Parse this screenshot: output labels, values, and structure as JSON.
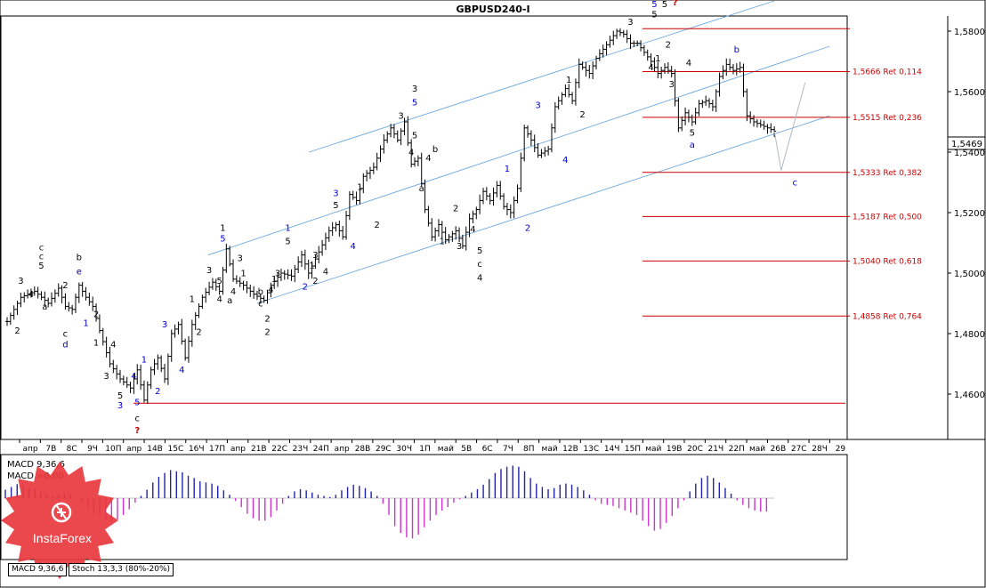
{
  "title": "GBPUSD240-I",
  "last_price": "1,5469",
  "chart_data": [
    {
      "type": "candlestick",
      "title": "GBPUSD240-I",
      "ylim": [
        1.445,
        1.585
      ],
      "yticks": [
        "1,4600",
        "1,4800",
        "1,5000",
        "1,5200",
        "1,5400",
        "1,5600",
        "1,5800"
      ],
      "ytick_values": [
        1.46,
        1.48,
        1.5,
        1.52,
        1.54,
        1.56,
        1.58
      ],
      "xticks": [
        "апр",
        "7В",
        "8С",
        "9Ч",
        "10П",
        "апр",
        "14В",
        "15С",
        "16Ч",
        "17П",
        "апр",
        "21В",
        "22С",
        "23Ч",
        "24П",
        "апр",
        "28В",
        "29С",
        "30Ч",
        "1П",
        "май",
        "5В",
        "6С",
        "7Ч",
        "8П",
        "май",
        "12В",
        "13С",
        "14Ч",
        "15П",
        "май",
        "19В",
        "20С",
        "21Ч",
        "22П",
        "май",
        "26В",
        "27С",
        "28Ч",
        "29"
      ],
      "price_path": [
        [
          0,
          1.484
        ],
        [
          4,
          1.492
        ],
        [
          8,
          1.494
        ],
        [
          12,
          1.49
        ],
        [
          15,
          1.495
        ],
        [
          17,
          1.489
        ],
        [
          19,
          1.488
        ],
        [
          21,
          1.496
        ],
        [
          23,
          1.492
        ],
        [
          25,
          1.489
        ],
        [
          27,
          1.481
        ],
        [
          30,
          1.47
        ],
        [
          33,
          1.465
        ],
        [
          36,
          1.462
        ],
        [
          38,
          1.468
        ],
        [
          40,
          1.458
        ],
        [
          42,
          1.468
        ],
        [
          44,
          1.472
        ],
        [
          46,
          1.465
        ],
        [
          48,
          1.48
        ],
        [
          50,
          1.483
        ],
        [
          52,
          1.472
        ],
        [
          54,
          1.483
        ],
        [
          57,
          1.492
        ],
        [
          60,
          1.497
        ],
        [
          62,
          1.494
        ],
        [
          64,
          1.508
        ],
        [
          66,
          1.498
        ],
        [
          69,
          1.496
        ],
        [
          72,
          1.493
        ],
        [
          75,
          1.491
        ],
        [
          77,
          1.496
        ],
        [
          80,
          1.5
        ],
        [
          83,
          1.499
        ],
        [
          86,
          1.506
        ],
        [
          88,
          1.5
        ],
        [
          91,
          1.507
        ],
        [
          94,
          1.514
        ],
        [
          96,
          1.516
        ],
        [
          98,
          1.512
        ],
        [
          100,
          1.526
        ],
        [
          102,
          1.524
        ],
        [
          104,
          1.532
        ],
        [
          107,
          1.535
        ],
        [
          110,
          1.544
        ],
        [
          112,
          1.548
        ],
        [
          114,
          1.544
        ],
        [
          116,
          1.55
        ],
        [
          118,
          1.536
        ],
        [
          120,
          1.538
        ],
        [
          122,
          1.521
        ],
        [
          124,
          1.512
        ],
        [
          126,
          1.516
        ],
        [
          128,
          1.511
        ],
        [
          131,
          1.514
        ],
        [
          133,
          1.509
        ],
        [
          135,
          1.518
        ],
        [
          137,
          1.521
        ],
        [
          139,
          1.527
        ],
        [
          141,
          1.524
        ],
        [
          143,
          1.529
        ],
        [
          145,
          1.522
        ],
        [
          147,
          1.52
        ],
        [
          149,
          1.528
        ],
        [
          151,
          1.548
        ],
        [
          153,
          1.544
        ],
        [
          155,
          1.539
        ],
        [
          158,
          1.541
        ],
        [
          160,
          1.555
        ],
        [
          163,
          1.561
        ],
        [
          165,
          1.557
        ],
        [
          167,
          1.569
        ],
        [
          170,
          1.566
        ],
        [
          172,
          1.571
        ],
        [
          174,
          1.574
        ],
        [
          176,
          1.577
        ],
        [
          178,
          1.58
        ],
        [
          180,
          1.579
        ],
        [
          182,
          1.576
        ],
        [
          184,
          1.576
        ],
        [
          186,
          1.573
        ],
        [
          188,
          1.57
        ],
        [
          190,
          1.566
        ],
        [
          192,
          1.568
        ],
        [
          194,
          1.566
        ],
        [
          196,
          1.548
        ],
        [
          198,
          1.553
        ],
        [
          200,
          1.55
        ],
        [
          202,
          1.556
        ],
        [
          204,
          1.557
        ],
        [
          206,
          1.555
        ],
        [
          208,
          1.565
        ],
        [
          210,
          1.569
        ],
        [
          212,
          1.567
        ],
        [
          214,
          1.568
        ],
        [
          216,
          1.552
        ],
        [
          218,
          1.55
        ],
        [
          220,
          1.549
        ],
        [
          222,
          1.548
        ],
        [
          224,
          1.5469
        ]
      ],
      "projection": [
        [
          224,
          1.5469
        ],
        [
          226,
          1.534
        ],
        [
          233,
          1.563
        ]
      ],
      "retracement_levels": [
        {
          "label": "1,5666 Ret 0,114",
          "value": 1.5666
        },
        {
          "label": "1,5515 Ret 0,236",
          "value": 1.5515
        },
        {
          "label": "1,5333 Ret 0,382",
          "value": 1.5333
        },
        {
          "label": "1,5187 Ret 0,500",
          "value": 1.5187
        },
        {
          "label": "1,5040 Ret 0,618",
          "value": 1.504
        },
        {
          "label": "1,4858 Ret 0,764",
          "value": 1.4858
        }
      ],
      "channels": [
        [
          [
            88,
            1.54
          ],
          [
            222,
            1.59
          ]
        ],
        [
          [
            59,
            1.506
          ],
          [
            238,
            1.575
          ]
        ],
        [
          [
            73,
            1.49
          ],
          [
            238,
            1.552
          ]
        ]
      ],
      "wave_labels": [
        {
          "t": "2",
          "x": 3,
          "y": 1.48,
          "c": "#000000"
        },
        {
          "t": "3",
          "x": 4,
          "y": 1.4965,
          "c": "#000000"
        },
        {
          "t": "c",
          "x": 10,
          "y": 1.5075,
          "c": "#1a1a1a"
        },
        {
          "t": "c",
          "x": 10,
          "y": 1.5045,
          "c": "#1a1a1a"
        },
        {
          "t": "5",
          "x": 10,
          "y": 1.5015,
          "c": "#000000"
        },
        {
          "t": "4",
          "x": 7,
          "y": 1.492,
          "c": "#000000"
        },
        {
          "t": "a",
          "x": 11,
          "y": 1.488,
          "c": "#000000"
        },
        {
          "t": "2",
          "x": 17,
          "y": 1.495,
          "c": "#000000"
        },
        {
          "t": "b",
          "x": 21,
          "y": 1.5042,
          "c": "#000000"
        },
        {
          "t": "e",
          "x": 21,
          "y": 1.4995,
          "c": "#00008b"
        },
        {
          "t": "c",
          "x": 17,
          "y": 1.479,
          "c": "#000000"
        },
        {
          "t": "d",
          "x": 17,
          "y": 1.4755,
          "c": "#00008b"
        },
        {
          "t": "1",
          "x": 23,
          "y": 1.4825,
          "c": "#0000cd"
        },
        {
          "t": "2",
          "x": 26,
          "y": 1.4855,
          "c": "#000000"
        },
        {
          "t": "1",
          "x": 26,
          "y": 1.476,
          "c": "#000000"
        },
        {
          "t": "3",
          "x": 29,
          "y": 1.465,
          "c": "#000000"
        },
        {
          "t": "4",
          "x": 31,
          "y": 1.4755,
          "c": "#000000"
        },
        {
          "t": "4",
          "x": 37,
          "y": 1.465,
          "c": "#0000cd"
        },
        {
          "t": "5",
          "x": 33,
          "y": 1.4585,
          "c": "#000000"
        },
        {
          "t": "3",
          "x": 33,
          "y": 1.4553,
          "c": "#0000cd"
        },
        {
          "t": "5",
          "x": 38,
          "y": 1.4563,
          "c": "#0000cd"
        },
        {
          "t": "1",
          "x": 40,
          "y": 1.4705,
          "c": "#0000cd"
        },
        {
          "t": "c",
          "x": 38,
          "y": 1.451,
          "c": "#000000"
        },
        {
          "t": "?",
          "x": 38,
          "y": 1.447,
          "c": "#cc0000"
        },
        {
          "t": "2",
          "x": 44,
          "y": 1.46,
          "c": "#0000cd"
        },
        {
          "t": "3",
          "x": 46,
          "y": 1.482,
          "c": "#0000cd"
        },
        {
          "t": "4",
          "x": 51,
          "y": 1.467,
          "c": "#0000cd"
        },
        {
          "t": "2",
          "x": 56,
          "y": 1.4795,
          "c": "#000000"
        },
        {
          "t": "1",
          "x": 54,
          "y": 1.4905,
          "c": "#000000"
        },
        {
          "t": "3",
          "x": 59,
          "y": 1.5,
          "c": "#000000"
        },
        {
          "t": "4",
          "x": 62,
          "y": 1.4905,
          "c": "#000000"
        },
        {
          "t": "a",
          "x": 65,
          "y": 1.49,
          "c": "#000000"
        },
        {
          "t": "5",
          "x": 62,
          "y": 1.4965,
          "c": "#000000"
        },
        {
          "t": "1",
          "x": 63,
          "y": 1.514,
          "c": "#000000"
        },
        {
          "t": "5",
          "x": 63,
          "y": 1.5105,
          "c": "#0000cd"
        },
        {
          "t": "4",
          "x": 66,
          "y": 1.493,
          "c": "#000000"
        },
        {
          "t": "1",
          "x": 69,
          "y": 1.499,
          "c": "#000000"
        },
        {
          "t": "3",
          "x": 68,
          "y": 1.504,
          "c": "#000000"
        },
        {
          "t": "b",
          "x": 74,
          "y": 1.493,
          "c": "#000000"
        },
        {
          "t": "c",
          "x": 74,
          "y": 1.489,
          "c": "#000000"
        },
        {
          "t": "2",
          "x": 76,
          "y": 1.484,
          "c": "#000000"
        },
        {
          "t": "1",
          "x": 78,
          "y": 1.497,
          "c": "#000000"
        },
        {
          "t": "2",
          "x": 76,
          "y": 1.4795,
          "c": "#000000"
        },
        {
          "t": "4",
          "x": 77,
          "y": 1.4935,
          "c": "#000000"
        },
        {
          "t": "3",
          "x": 79,
          "y": 1.499,
          "c": "#000000"
        },
        {
          "t": "5",
          "x": 82,
          "y": 1.5095,
          "c": "#000000"
        },
        {
          "t": "1",
          "x": 82,
          "y": 1.514,
          "c": "#0000cd"
        },
        {
          "t": "2",
          "x": 87,
          "y": 1.4945,
          "c": "#0000cd"
        },
        {
          "t": "1",
          "x": 89,
          "y": 1.5015,
          "c": "#000000"
        },
        {
          "t": "3",
          "x": 90,
          "y": 1.505,
          "c": "#000000"
        },
        {
          "t": "2",
          "x": 90,
          "y": 1.4965,
          "c": "#000000"
        },
        {
          "t": "4",
          "x": 93,
          "y": 1.4995,
          "c": "#000000"
        },
        {
          "t": "5",
          "x": 96,
          "y": 1.5215,
          "c": "#000000"
        },
        {
          "t": "3",
          "x": 96,
          "y": 1.5255,
          "c": "#0000cd"
        },
        {
          "t": "4",
          "x": 101,
          "y": 1.508,
          "c": "#0000cd"
        },
        {
          "t": "1",
          "x": 103,
          "y": 1.5275,
          "c": "#000000"
        },
        {
          "t": "2",
          "x": 108,
          "y": 1.515,
          "c": "#000000"
        },
        {
          "t": "3",
          "x": 115,
          "y": 1.551,
          "c": "#000000"
        },
        {
          "t": "5",
          "x": 119,
          "y": 1.5445,
          "c": "#000000"
        },
        {
          "t": "4",
          "x": 118,
          "y": 1.539,
          "c": "#000000"
        },
        {
          "t": "3",
          "x": 119,
          "y": 1.56,
          "c": "#000000"
        },
        {
          "t": "5",
          "x": 119,
          "y": 1.5555,
          "c": "#0000cd"
        },
        {
          "t": "4",
          "x": 123,
          "y": 1.537,
          "c": "#000000"
        },
        {
          "t": "a",
          "x": 121,
          "y": 1.527,
          "c": "#000000"
        },
        {
          "t": "b",
          "x": 125,
          "y": 1.54,
          "c": "#000000"
        },
        {
          "t": "1",
          "x": 127,
          "y": 1.5095,
          "c": "#000000"
        },
        {
          "t": "2",
          "x": 131,
          "y": 1.5205,
          "c": "#000000"
        },
        {
          "t": "3",
          "x": 132,
          "y": 1.508,
          "c": "#000000"
        },
        {
          "t": "4",
          "x": 136,
          "y": 1.5135,
          "c": "#000000"
        },
        {
          "t": "5",
          "x": 138,
          "y": 1.5065,
          "c": "#000000"
        },
        {
          "t": "c",
          "x": 138,
          "y": 1.502,
          "c": "#000000"
        },
        {
          "t": "4",
          "x": 138,
          "y": 1.4975,
          "c": "#000000"
        },
        {
          "t": "1",
          "x": 146,
          "y": 1.5335,
          "c": "#0000cd"
        },
        {
          "t": "2",
          "x": 152,
          "y": 1.514,
          "c": "#0000cd"
        },
        {
          "t": "3",
          "x": 155,
          "y": 1.5545,
          "c": "#0000cd"
        },
        {
          "t": "4",
          "x": 163,
          "y": 1.5365,
          "c": "#0000cd"
        },
        {
          "t": "1",
          "x": 164,
          "y": 1.563,
          "c": "#000000"
        },
        {
          "t": "2",
          "x": 168,
          "y": 1.5515,
          "c": "#000000"
        },
        {
          "t": "3",
          "x": 182,
          "y": 1.582,
          "c": "#000000"
        },
        {
          "t": "5",
          "x": 189,
          "y": 1.588,
          "c": "#0000cd"
        },
        {
          "t": "5",
          "x": 189,
          "y": 1.5845,
          "c": "#000000"
        },
        {
          "t": "5",
          "x": 192,
          "y": 1.588,
          "c": "#000000"
        },
        {
          "t": "?",
          "x": 195,
          "y": 1.5885,
          "c": "#cc0000"
        },
        {
          "t": "2",
          "x": 193,
          "y": 1.5745,
          "c": "#000000"
        },
        {
          "t": "1",
          "x": 190,
          "y": 1.57,
          "c": "#000000"
        },
        {
          "t": "4",
          "x": 188,
          "y": 1.567,
          "c": "#000000"
        },
        {
          "t": "3",
          "x": 194,
          "y": 1.5615,
          "c": "#000000"
        },
        {
          "t": "4",
          "x": 199,
          "y": 1.5685,
          "c": "#000000"
        },
        {
          "t": "5",
          "x": 200,
          "y": 1.5455,
          "c": "#000000"
        },
        {
          "t": "a",
          "x": 200,
          "y": 1.5415,
          "c": "#0000cd"
        },
        {
          "t": "b",
          "x": 213,
          "y": 1.573,
          "c": "#0000cd"
        },
        {
          "t": "c",
          "x": 230,
          "y": 1.529,
          "c": "#0000cd"
        }
      ]
    },
    {
      "type": "histogram",
      "title": "MACD 9,36,6",
      "labels": [
        "MACD 9,36,6",
        "MACD =0,00"
      ],
      "zero_line": 0,
      "values": [
        0.0015,
        0.002,
        0.0025,
        0.0022,
        0.0018,
        0.0015,
        0.001,
        0.0006,
        0.0004,
        0.0007,
        0.0009,
        0.0006,
        0.0,
        -0.0008,
        -0.0018,
        -0.0028,
        -0.0035,
        -0.004,
        -0.0042,
        -0.0038,
        -0.003,
        -0.002,
        -0.0008,
        0.0004,
        0.0015,
        0.0028,
        0.0038,
        0.0045,
        0.005,
        0.0048,
        0.0046,
        0.004,
        0.0036,
        0.003,
        0.0028,
        0.0026,
        0.0022,
        0.0014,
        0.0006,
        -0.0005,
        -0.0016,
        -0.0028,
        -0.0036,
        -0.004,
        -0.004,
        -0.0034,
        -0.0022,
        -0.001,
        0.0004,
        0.0012,
        0.0016,
        0.0014,
        0.001,
        0.0006,
        0.0004,
        0.0002,
        0.0006,
        0.0014,
        0.002,
        0.0024,
        0.0022,
        0.0018,
        0.0012,
        0.0004,
        -0.001,
        -0.003,
        -0.005,
        -0.0062,
        -0.007,
        -0.0072,
        -0.0065,
        -0.0052,
        -0.004,
        -0.003,
        -0.0022,
        -0.0016,
        -0.0008,
        -0.0002,
        0.0004,
        0.001,
        0.0016,
        0.0024,
        0.0034,
        0.0045,
        0.0052,
        0.0056,
        0.0058,
        0.0056,
        0.0048,
        0.0036,
        0.0026,
        0.002,
        0.0016,
        0.0018,
        0.0024,
        0.0026,
        0.0024,
        0.002,
        0.0014,
        0.0006,
        -0.0004,
        -0.001,
        -0.0012,
        -0.0014,
        -0.0018,
        -0.0022,
        -0.0026,
        -0.003,
        -0.004,
        -0.005,
        -0.0058,
        -0.0055,
        -0.0044,
        -0.0032,
        -0.0018,
        -0.0004,
        0.0012,
        0.0026,
        0.0036,
        0.004,
        0.0036,
        0.0028,
        0.0018,
        0.0008,
        -0.0004,
        -0.0012,
        -0.0018,
        -0.0022,
        -0.0024,
        -0.0024
      ]
    }
  ],
  "tabs": [
    "MACD 9,36,6",
    "Stoch 13,3,3 (80%-20%)"
  ],
  "brand": {
    "name": "InstaForex",
    "color": "#e8383d"
  }
}
